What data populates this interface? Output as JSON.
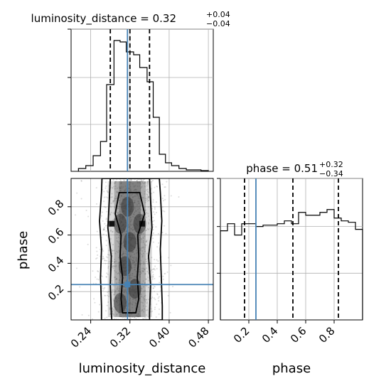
{
  "chart_data": {
    "type": "corner",
    "parameters": [
      "luminosity_distance",
      "phase"
    ],
    "truth": {
      "luminosity_distance": 0.315,
      "phase": 0.25
    },
    "panels": [
      {
        "id": "hist-luminosity_distance",
        "type": "histogram",
        "parameter": "luminosity_distance",
        "title": {
          "main": "luminosity_distance = 0.32",
          "sup": "+0.04",
          "sub": "−0.04"
        },
        "xlim": [
          0.2,
          0.49
        ],
        "ylim": [
          0,
          1.0
        ],
        "bin_edges": [
          0.215,
          0.23,
          0.245,
          0.26,
          0.2725,
          0.2875,
          0.3,
          0.3125,
          0.3275,
          0.34,
          0.355,
          0.3675,
          0.38,
          0.3925,
          0.405,
          0.42,
          0.435,
          0.45,
          0.465,
          0.48
        ],
        "counts": [
          0.02,
          0.04,
          0.11,
          0.21,
          0.61,
          0.92,
          0.91,
          0.84,
          0.82,
          0.73,
          0.63,
          0.38,
          0.12,
          0.06,
          0.04,
          0.02,
          0.01,
          0.01,
          0.005
        ],
        "quantiles": [
          0.28,
          0.32,
          0.36
        ],
        "truth": 0.315
      },
      {
        "id": "hist-phase",
        "type": "histogram",
        "parameter": "phase",
        "title": {
          "main": "phase = 0.51",
          "sup": "+0.32",
          "sub": "−0.34"
        },
        "xlim": [
          0.0,
          1.0
        ],
        "ylim": [
          0,
          1.0
        ],
        "bin_edges": [
          0.0,
          0.05,
          0.1,
          0.15,
          0.2,
          0.25,
          0.3,
          0.35,
          0.4,
          0.45,
          0.5,
          0.55,
          0.6,
          0.65,
          0.7,
          0.75,
          0.8,
          0.85,
          0.9,
          0.95,
          1.0
        ],
        "counts": [
          0.63,
          0.68,
          0.6,
          0.68,
          0.68,
          0.66,
          0.67,
          0.67,
          0.68,
          0.7,
          0.68,
          0.76,
          0.74,
          0.74,
          0.76,
          0.78,
          0.72,
          0.7,
          0.69,
          0.64
        ],
        "quantiles": [
          0.17,
          0.51,
          0.83
        ],
        "truth": 0.25
      },
      {
        "id": "joint-luminosity_distance-phase",
        "type": "2d-density",
        "x": "luminosity_distance",
        "y": "phase",
        "xlim": [
          0.2,
          0.49
        ],
        "ylim": [
          0.0,
          1.0
        ],
        "xticks": [
          "0.24",
          "0.32",
          "0.40",
          "0.48"
        ],
        "xtick_values": [
          0.24,
          0.32,
          0.4,
          0.48
        ],
        "yticks": [
          "0.2",
          "0.4",
          "0.6",
          "0.8"
        ],
        "ytick_values": [
          0.2,
          0.4,
          0.6,
          0.8
        ],
        "xlabel": "luminosity_distance",
        "ylabel": "phase",
        "truth_point": [
          0.315,
          0.25
        ]
      },
      {
        "id": "xaxis-phase",
        "xticks": [
          "0.2",
          "0.4",
          "0.6",
          "0.8"
        ],
        "xtick_values": [
          0.2,
          0.4,
          0.6,
          0.8
        ],
        "xlabel": "phase"
      }
    ],
    "grid": true,
    "colors": {
      "hist": "#000000",
      "truth": "#4682b4",
      "quantile": "#000000",
      "grid": "#b0b0b0",
      "scatter": "#9a9a9a"
    }
  }
}
